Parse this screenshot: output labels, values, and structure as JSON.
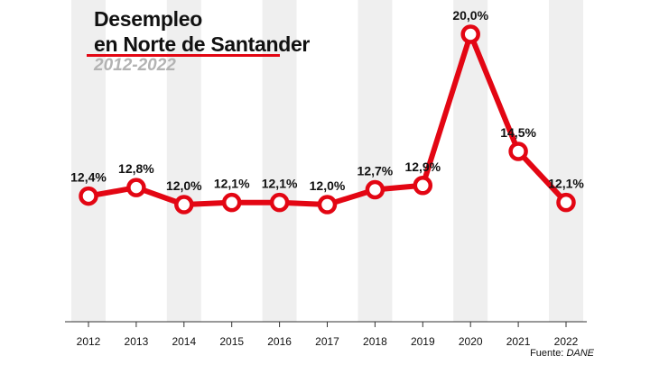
{
  "title_line1": "Desempleo",
  "title_line2": "en Norte de Santander",
  "subtitle": "2012-2022",
  "source_label": "Fuente:",
  "source_name": "DANE",
  "colors": {
    "line": "#e30613",
    "band": "#efefef",
    "text": "#111111",
    "subtitle": "#b3b3b3"
  },
  "chart_data": {
    "type": "line",
    "title": "Desempleo en Norte de Santander",
    "subtitle": "2012-2022",
    "categories": [
      "2012",
      "2013",
      "2014",
      "2015",
      "2016",
      "2017",
      "2018",
      "2019",
      "2020",
      "2021",
      "2022"
    ],
    "values": [
      12.4,
      12.8,
      12.0,
      12.1,
      12.1,
      12.0,
      12.7,
      12.9,
      20.0,
      14.5,
      12.1
    ],
    "labels": [
      "12,4%",
      "12,8%",
      "12,0%",
      "12,1%",
      "12,1%",
      "12,0%",
      "12,7%",
      "12,9%",
      "20,0%",
      "14,5%",
      "12,1%"
    ],
    "xlabel": "",
    "ylabel": "",
    "ylim": [
      6.5,
      20.0
    ],
    "grid": false
  }
}
